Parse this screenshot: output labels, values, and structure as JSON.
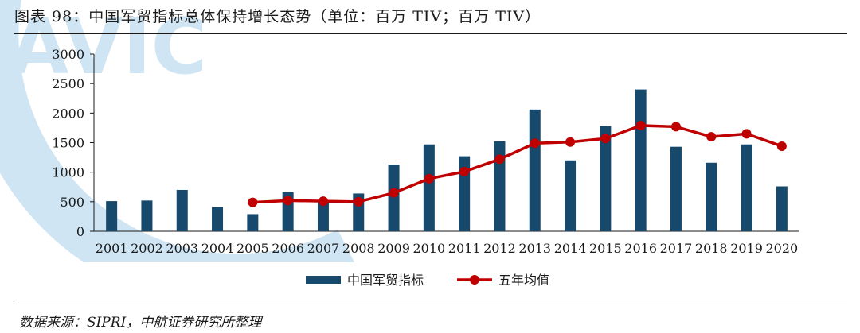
{
  "header": {
    "title": "图表 98：中国军贸指标总体保持增长态势（单位：百万 TIV；百万 TIV）"
  },
  "footer": {
    "source": "数据来源：SIPRI，中航证券研究所整理"
  },
  "watermark": {
    "text": "AVIC"
  },
  "colors": {
    "bar": "#16496b",
    "line": "#c00000",
    "axis": "#1a1a1a",
    "watermark": "#cfe5f3"
  },
  "chart_data": {
    "type": "bar+line",
    "categories": [
      "2001",
      "2002",
      "2003",
      "2004",
      "2005",
      "2006",
      "2007",
      "2008",
      "2009",
      "2010",
      "2011",
      "2012",
      "2013",
      "2014",
      "2015",
      "2016",
      "2017",
      "2018",
      "2019",
      "2020"
    ],
    "ylim": [
      0,
      3000
    ],
    "yticks": [
      0,
      500,
      1000,
      1500,
      2000,
      2500,
      3000
    ],
    "series": [
      {
        "name": "中国军贸指标",
        "type": "bar",
        "values": [
          510,
          520,
          700,
          410,
          290,
          660,
          500,
          640,
          1130,
          1470,
          1270,
          1520,
          2060,
          1200,
          1780,
          2400,
          1430,
          1160,
          1470,
          760
        ]
      },
      {
        "name": "五年均值",
        "type": "line",
        "values": [
          null,
          null,
          null,
          null,
          490,
          520,
          510,
          500,
          650,
          890,
          1010,
          1220,
          1490,
          1510,
          1570,
          1790,
          1770,
          1600,
          1650,
          1440
        ]
      }
    ],
    "legend": [
      "中国军贸指标",
      "五年均值"
    ],
    "legend_position": "bottom-center",
    "grid": false
  }
}
